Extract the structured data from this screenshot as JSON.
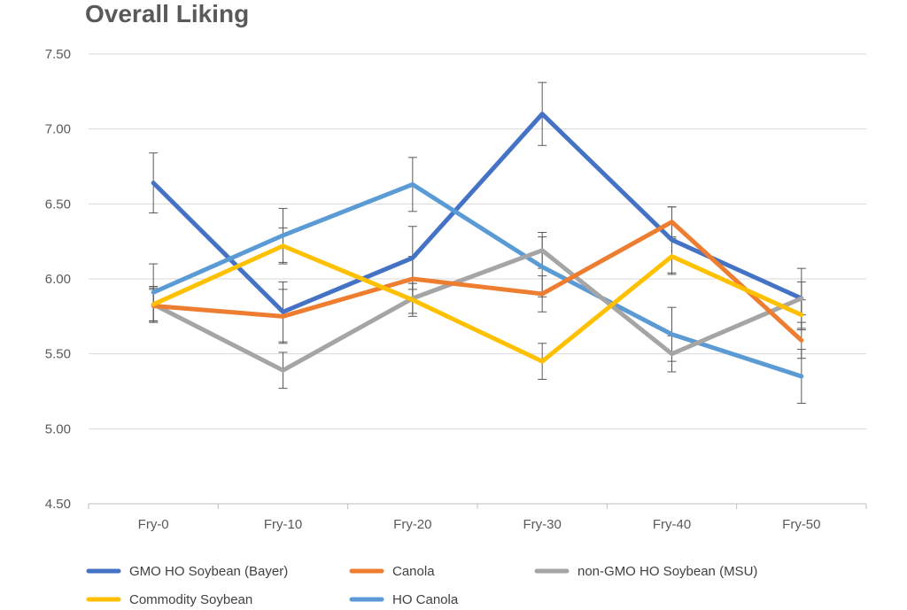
{
  "chart_data": {
    "type": "line",
    "title": "Overall Liking",
    "xlabel": "",
    "ylabel": "",
    "categories": [
      "Fry-0",
      "Fry-10",
      "Fry-20",
      "Fry-30",
      "Fry-40",
      "Fry-50"
    ],
    "ylim": [
      4.5,
      7.5
    ],
    "yticks": [
      "4.50",
      "5.00",
      "5.50",
      "6.00",
      "6.50",
      "7.00",
      "7.50"
    ],
    "grid": "horizontal",
    "legend": "bottom",
    "series": [
      {
        "name": "GMO HO Soybean (Bayer)",
        "color": "#4472C4",
        "values": [
          6.64,
          5.78,
          6.14,
          7.1,
          6.26,
          5.87
        ],
        "errors": [
          0.2,
          0.2,
          0.21,
          0.21,
          0.22,
          0.2
        ]
      },
      {
        "name": "Canola",
        "color": "#ED7D31",
        "values": [
          5.82,
          5.75,
          6.0,
          5.9,
          6.38,
          5.59
        ],
        "errors": [
          0.11,
          0.18,
          0.15,
          0.12,
          0.1,
          0.12
        ]
      },
      {
        "name": "non-GMO HO Soybean (MSU)",
        "color": "#A5A5A5",
        "values": [
          5.83,
          5.39,
          5.87,
          6.19,
          5.5,
          5.87
        ],
        "errors": [
          0.11,
          0.12,
          0.1,
          0.12,
          0.12,
          0.11
        ]
      },
      {
        "name": "Commodity Soybean",
        "color": "#FFC000",
        "values": [
          5.83,
          6.22,
          5.86,
          5.45,
          6.15,
          5.76
        ],
        "errors": [
          0.12,
          0.12,
          0.11,
          0.12,
          0.12,
          0.1
        ]
      },
      {
        "name": "HO Canola",
        "color": "#5B9BD5",
        "values": [
          5.91,
          6.29,
          6.63,
          6.08,
          5.63,
          5.35
        ],
        "errors": [
          0.19,
          0.18,
          0.18,
          0.2,
          0.18,
          0.18
        ]
      }
    ]
  }
}
